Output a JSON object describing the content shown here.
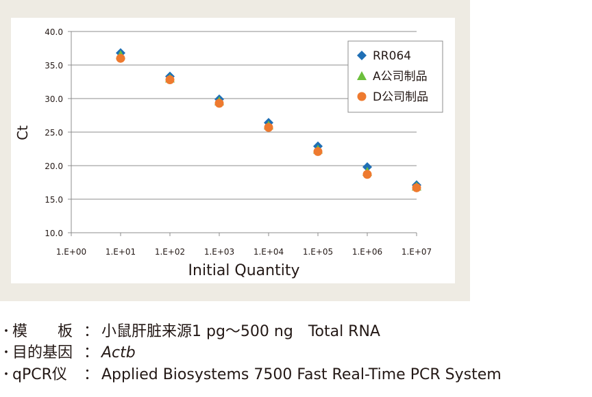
{
  "chart_data": {
    "type": "scatter",
    "title": "",
    "xlabel": "Initial Quantity",
    "ylabel": "Ct",
    "x_scale": "log",
    "x": [
      10,
      100,
      1000,
      10000,
      100000,
      1000000,
      10000000
    ],
    "x_tick_labels": [
      "1.E+00",
      "1.E+01",
      "1.E+02",
      "1.E+03",
      "1.E+04",
      "1.E+05",
      "1.E+06",
      "1.E+07"
    ],
    "y_tick_labels": [
      "10.0",
      "15.0",
      "20.0",
      "25.0",
      "30.0",
      "35.0",
      "40.0"
    ],
    "ylim": [
      10,
      40
    ],
    "grid": "horizontal",
    "legend_position": "top-right",
    "series": [
      {
        "name": "RR064",
        "marker": "diamond",
        "color": "#1f6fb5",
        "values": [
          36.8,
          33.3,
          29.9,
          26.4,
          22.9,
          19.8,
          17.1
        ]
      },
      {
        "name": "A公司制品",
        "marker": "triangle",
        "color": "#6cbf3c",
        "values": [
          36.5,
          33.0,
          29.6,
          26.0,
          22.4,
          19.1,
          16.9
        ]
      },
      {
        "name": "D公司制品",
        "marker": "circle",
        "color": "#ee7a2f",
        "values": [
          36.0,
          32.8,
          29.3,
          25.7,
          22.1,
          18.7,
          16.7
        ]
      }
    ]
  },
  "notes": [
    {
      "label": "模　　板",
      "value": "小鼠肝脏来源1 pg～500 ng　Total RNA",
      "italic": false
    },
    {
      "label": "目的基因",
      "value": "Actb",
      "italic": true
    },
    {
      "label": "qPCR仪",
      "value": "Applied Biosystems 7500 Fast Real-Time PCR System",
      "italic": false
    }
  ],
  "bullet": "・",
  "colon": "："
}
